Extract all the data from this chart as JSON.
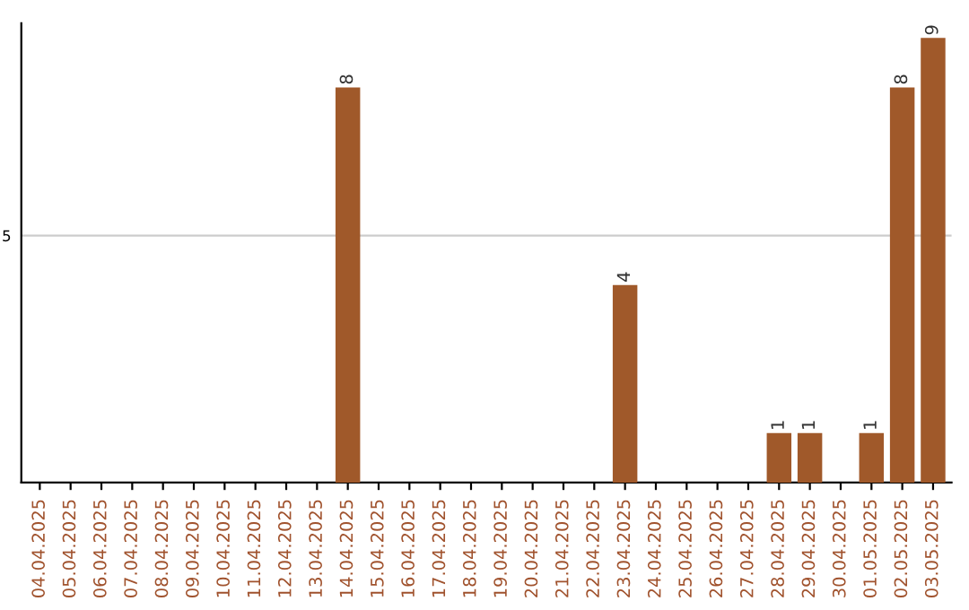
{
  "chart_data": {
    "type": "bar",
    "categories": [
      "04.04.2025",
      "05.04.2025",
      "06.04.2025",
      "07.04.2025",
      "08.04.2025",
      "09.04.2025",
      "10.04.2025",
      "11.04.2025",
      "12.04.2025",
      "13.04.2025",
      "14.04.2025",
      "15.04.2025",
      "16.04.2025",
      "17.04.2025",
      "18.04.2025",
      "19.04.2025",
      "20.04.2025",
      "21.04.2025",
      "22.04.2025",
      "23.04.2025",
      "24.04.2025",
      "25.04.2025",
      "26.04.2025",
      "27.04.2025",
      "28.04.2025",
      "29.04.2025",
      "30.04.2025",
      "01.05.2025",
      "02.05.2025",
      "03.05.2025"
    ],
    "values": [
      0,
      0,
      0,
      0,
      0,
      0,
      0,
      0,
      0,
      0,
      8,
      0,
      0,
      0,
      0,
      0,
      0,
      0,
      0,
      4,
      0,
      0,
      0,
      0,
      1,
      1,
      0,
      1,
      8,
      9
    ],
    "value_labels": [
      null,
      null,
      null,
      null,
      null,
      null,
      null,
      null,
      null,
      null,
      "8",
      null,
      null,
      null,
      null,
      null,
      null,
      null,
      null,
      "4",
      null,
      null,
      null,
      null,
      "1",
      "1",
      null,
      "1",
      "8",
      "9"
    ],
    "color": "#a0592a",
    "ylim": [
      0,
      9.3
    ],
    "yticks": [
      5
    ],
    "grid": "y"
  }
}
